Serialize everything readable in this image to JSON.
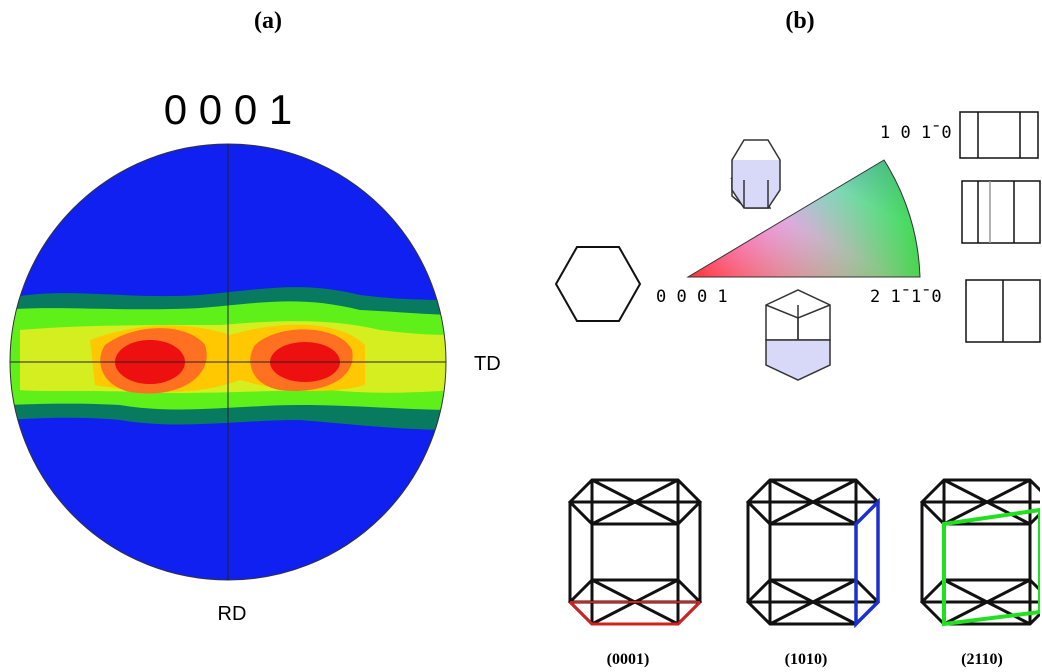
{
  "panel_a": {
    "label": "(a)",
    "pole_title": "0 0 0 1",
    "td": "TD",
    "rd": "RD"
  },
  "panel_b": {
    "label": "(b)",
    "ipf_top": "1 0 1̄ 0",
    "ipf_left": "0 0 0 1",
    "ipf_right": "2 1̄ 1̄ 0",
    "planes": [
      "(0001)",
      "(1010)",
      "(2110)"
    ]
  }
}
